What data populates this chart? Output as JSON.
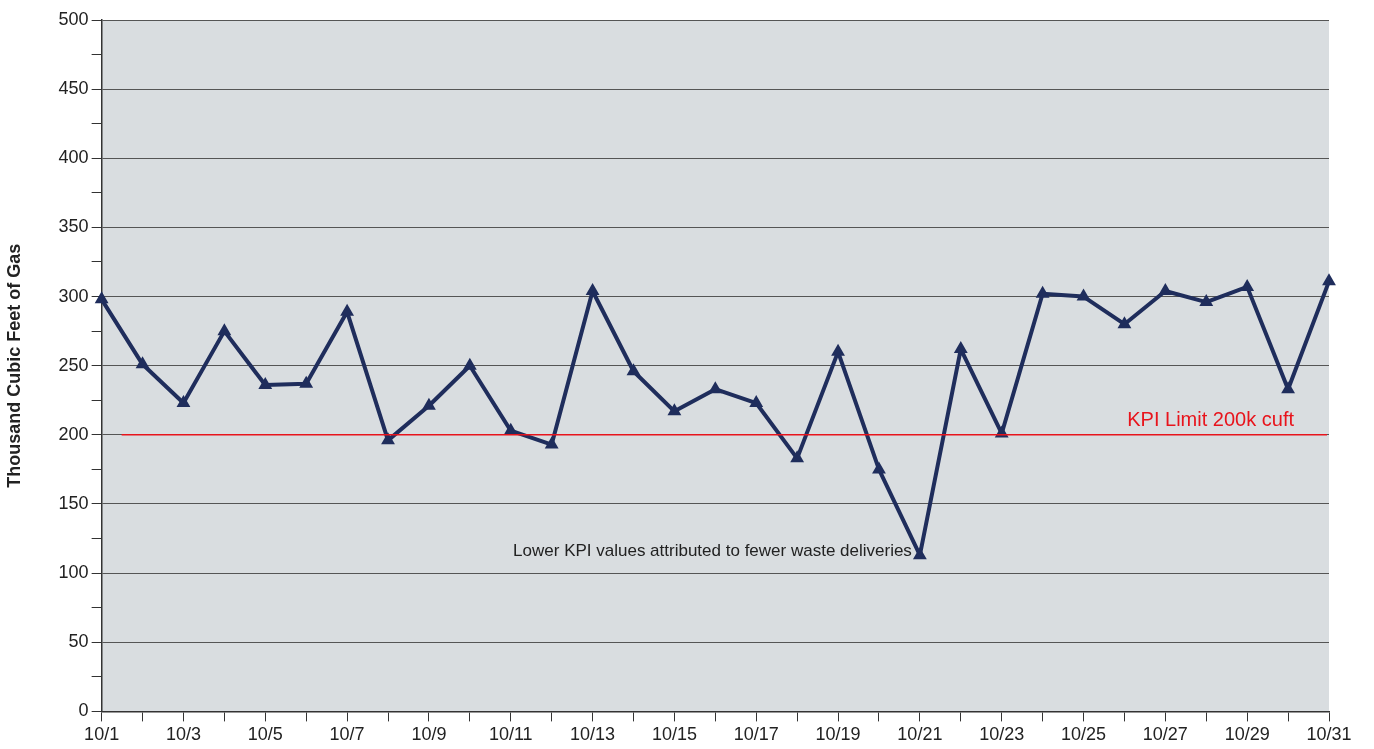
{
  "chart_data": {
    "type": "line",
    "ylabel": "Thousand Cubic Feet of Gas",
    "categories": [
      "10/1",
      null,
      "10/3",
      null,
      "10/5",
      null,
      "10/7",
      null,
      "10/9",
      null,
      "10/11",
      null,
      "10/13",
      null,
      "10/15",
      null,
      "10/17",
      null,
      "10/19",
      null,
      "10/21",
      null,
      "10/23",
      null,
      "10/25",
      null,
      "10/27",
      null,
      "10/29",
      null,
      "10/31"
    ],
    "series": [
      {
        "color": "#1f2d5c",
        "values": [
          298,
          251,
          223,
          275,
          236,
          237,
          289,
          196,
          221,
          250,
          203,
          193,
          304,
          246,
          217,
          233,
          223,
          183,
          260,
          175,
          113,
          262,
          201,
          302,
          300,
          280,
          304,
          296,
          307,
          233,
          311
        ]
      }
    ],
    "ylim": [
      0,
      500
    ],
    "yticks": [
      0,
      {
        "value": 25,
        "label": null
      },
      50,
      {
        "value": 75,
        "label": null
      },
      100,
      {
        "value": 125,
        "label": null
      },
      150,
      {
        "value": 175,
        "label": null
      },
      200,
      {
        "value": 225,
        "label": null
      },
      250,
      {
        "value": 275,
        "label": null
      },
      300,
      {
        "value": 325,
        "label": null
      },
      350,
      {
        "value": 375,
        "label": null
      },
      400,
      {
        "value": 425,
        "label": null
      },
      450,
      {
        "value": 475,
        "label": null
      },
      500
    ],
    "grid": "y",
    "legend": false,
    "marker": "triangle",
    "line_style": "solid",
    "ref_lines": [
      {
        "axis": "y",
        "value": 200,
        "label": "KPI Limit 200k cuft",
        "color": "#e8141c"
      }
    ],
    "annotations": [
      {
        "text": "Lower KPI values attributed to fewer waste deliveries",
        "x": "10/21",
        "y": 113
      }
    ]
  }
}
